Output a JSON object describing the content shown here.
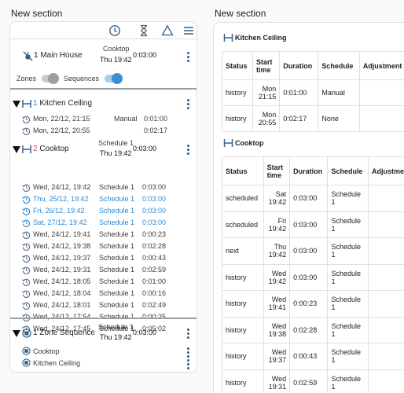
{
  "left": {
    "title": "New section",
    "toolbar_icons": [
      "clock-icon",
      "hourglass-icon",
      "warning-triangle-icon",
      "menu-icon"
    ],
    "main_house": {
      "label": "1 Main House",
      "sequence_name": "Cooktop",
      "next_time": "Thu 19:42",
      "duration": "0:03:00",
      "zones_label": "Zones",
      "sequences_label": "Sequences",
      "zones_on": false,
      "sequences_on": true
    },
    "kitchen_ceiling": {
      "number": "1",
      "label": "Kitchen Ceiling",
      "rows": [
        {
          "when": "Mon, 22/12, 21:15",
          "schedule": "Manual",
          "duration": "0:01:00"
        },
        {
          "when": "Mon, 22/12, 20:55",
          "schedule": "",
          "duration": "0:02:17"
        }
      ]
    },
    "cooktop": {
      "number": "2",
      "label": "Cooktop",
      "schedule": "Schedule 1",
      "next_time": "Thu 19:42",
      "duration": "0:03:00",
      "rows": [
        {
          "when": "Wed, 24/12, 19:42",
          "schedule": "Schedule 1",
          "duration": "0:03:00",
          "status": "history"
        },
        {
          "when": "Thu, 25/12, 19:42",
          "schedule": "Schedule 1",
          "duration": "0:03:00",
          "status": "scheduled"
        },
        {
          "when": "Fri, 26/12, 19:42",
          "schedule": "Schedule 1",
          "duration": "0:03:00",
          "status": "scheduled"
        },
        {
          "when": "Sat, 27/12, 19:42",
          "schedule": "Schedule 1",
          "duration": "0:03:00",
          "status": "scheduled"
        },
        {
          "when": "Wed, 24/12, 19:41",
          "schedule": "Schedule 1",
          "duration": "0:00:23",
          "status": "history"
        },
        {
          "when": "Wed, 24/12, 19:38",
          "schedule": "Schedule 1",
          "duration": "0:02:28",
          "status": "history"
        },
        {
          "when": "Wed, 24/12, 19:37",
          "schedule": "Schedule 1",
          "duration": "0:00:43",
          "status": "history"
        },
        {
          "when": "Wed, 24/12, 19:31",
          "schedule": "Schedule 1",
          "duration": "0:02:59",
          "status": "history"
        },
        {
          "when": "Wed, 24/12, 18:05",
          "schedule": "Schedule 1",
          "duration": "0:01:00",
          "status": "history"
        },
        {
          "when": "Wed, 24/12, 18:04",
          "schedule": "Schedule 1",
          "duration": "0:00:16",
          "status": "history"
        },
        {
          "when": "Wed, 24/12, 18:01",
          "schedule": "Schedule 1",
          "duration": "0:02:49",
          "status": "history"
        },
        {
          "when": "Wed, 24/12, 17:54",
          "schedule": "Schedule 1",
          "duration": "0:00:25",
          "status": "history"
        },
        {
          "when": "Wed, 24/12, 17:45",
          "schedule": "Schedule 1",
          "duration": "0:05:02",
          "status": "history"
        }
      ]
    },
    "zone_sequence": {
      "label": "1 Zone Sequence",
      "schedule": "Schedule 1",
      "next_time": "Thu 19:42",
      "duration": "0:03:00",
      "items": [
        "Cooktop",
        "Kitchen Ceiling"
      ]
    }
  },
  "right": {
    "title": "New section",
    "kitchen_ceiling": {
      "label": "Kitchen Ceiling",
      "headers": [
        "Status",
        "Start time",
        "Duration",
        "Schedule",
        "Adjustment"
      ],
      "rows": [
        {
          "status": "history",
          "start": "Mon 21:15",
          "duration": "0:01:00",
          "schedule": "Manual",
          "adjustment": ""
        },
        {
          "status": "history",
          "start": "Mon 20:55",
          "duration": "0:02:17",
          "schedule": "None",
          "adjustment": ""
        }
      ]
    },
    "cooktop": {
      "label": "Cooktop",
      "headers": [
        "Status",
        "Start time",
        "Duration",
        "Schedule",
        "Adjustment"
      ],
      "rows": [
        {
          "status": "scheduled",
          "start": "Sat 19:42",
          "duration": "0:03:00",
          "schedule": "Schedule 1",
          "adjustment": ""
        },
        {
          "status": "scheduled",
          "start": "Fri 19:42",
          "duration": "0:03:00",
          "schedule": "Schedule 1",
          "adjustment": ""
        },
        {
          "status": "next",
          "start": "Thu 19:42",
          "duration": "0:03:00",
          "schedule": "Schedule 1",
          "adjustment": ""
        },
        {
          "status": "history",
          "start": "Wed 19:42",
          "duration": "0:03:00",
          "schedule": "Schedule 1",
          "adjustment": ""
        },
        {
          "status": "history",
          "start": "Wed 19:41",
          "duration": "0:00:23",
          "schedule": "Schedule 1",
          "adjustment": ""
        },
        {
          "status": "history",
          "start": "Wed 19:38",
          "duration": "0:02:28",
          "schedule": "Schedule 1",
          "adjustment": ""
        },
        {
          "status": "history",
          "start": "Wed 19:37",
          "duration": "0:00:43",
          "schedule": "Schedule 1",
          "adjustment": ""
        },
        {
          "status": "history",
          "start": "Wed 19:31",
          "duration": "0:02:59",
          "schedule": "Schedule 1",
          "adjustment": ""
        }
      ]
    }
  },
  "colors": {
    "accent": "#3a5f8a",
    "scheduled": "#2b8ad6",
    "number_red": "#d9534f",
    "toggle_on": "#3d8fd1"
  }
}
